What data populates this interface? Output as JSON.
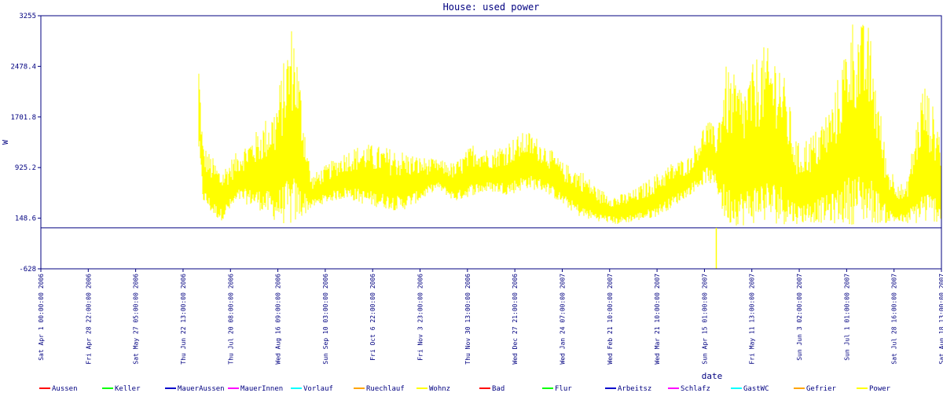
{
  "chart_data": {
    "type": "line",
    "title": "House: used power",
    "xlabel": "date",
    "ylabel": "W",
    "ylim": [
      -628,
      3255
    ],
    "yticks": [
      -628,
      148.6,
      925.2,
      1701.8,
      2478.4,
      3255
    ],
    "y_tick_labels": [
      "-628",
      "148.6",
      "925.2",
      "1701.8",
      "2478.4",
      "3255"
    ],
    "x_tick_labels": [
      "Sat Apr  1 00:00:00 2006",
      "Fri Apr 28 22:00:00 2006",
      "Sat May 27 05:00:00 2006",
      "Thu Jun 22 13:00:00 2006",
      "Thu Jul 20 08:00:00 2006",
      "Wed Aug 16 09:00:00 2006",
      "Sun Sep 10 03:00:00 2006",
      "Fri Oct  6 22:00:00 2006",
      "Fri Nov  3 23:00:00 2006",
      "Thu Nov 30 13:00:00 2006",
      "Wed Dec 27 21:00:00 2006",
      "Wed Jan 24 07:00:00 2007",
      "Wed Feb 21 10:00:00 2007",
      "Wed Mar 21 10:00:00 2007",
      "Sun Apr 15 01:00:00 2007",
      "Fri May 11 13:00:00 2007",
      "Sun Jun  3 02:00:00 2007",
      "Sun Jul  1 01:00:00 2007",
      "Sat Jul 28 16:00:00 2007",
      "Sat Aug 18 13:00:00 2007"
    ],
    "reference_line": {
      "y": 0,
      "color": "#000080"
    },
    "legend": [
      {
        "name": "Aussen",
        "color": "#ff0000"
      },
      {
        "name": "Keller",
        "color": "#00ff00"
      },
      {
        "name": "MauerAussen",
        "color": "#0000cc"
      },
      {
        "name": "MauerInnen",
        "color": "#ff00ff"
      },
      {
        "name": "Vorlauf",
        "color": "#00ffff"
      },
      {
        "name": "Ruechlauf",
        "color": "#ffa500"
      },
      {
        "name": "Wohnz",
        "color": "#ffff00"
      },
      {
        "name": "Bad",
        "color": "#ff0000"
      },
      {
        "name": "Flur",
        "color": "#00ff00"
      },
      {
        "name": "Arbeitsz",
        "color": "#0000cc"
      },
      {
        "name": "Schlafz",
        "color": "#ff00ff"
      },
      {
        "name": "GastWC",
        "color": "#00ffff"
      },
      {
        "name": "Gefrier",
        "color": "#ffa500"
      },
      {
        "name": "Power",
        "color": "#ffff00"
      }
    ],
    "legend_position": "bottom",
    "series": [
      {
        "name": "Power",
        "color": "#ffff00",
        "x": [
          0.175,
          0.18,
          0.19,
          0.2,
          0.22,
          0.24,
          0.26,
          0.28,
          0.3,
          0.32,
          0.34,
          0.36,
          0.38,
          0.4,
          0.42,
          0.44,
          0.46,
          0.48,
          0.5,
          0.52,
          0.54,
          0.56,
          0.58,
          0.6,
          0.62,
          0.64,
          0.66,
          0.68,
          0.7,
          0.72,
          0.74,
          0.75,
          0.76,
          0.78,
          0.8,
          0.82,
          0.84,
          0.86,
          0.88,
          0.9,
          0.92,
          0.94,
          0.96,
          0.98,
          1.0
        ],
        "y_upper": [
          2700,
          1300,
          1100,
          900,
          1200,
          1500,
          1900,
          3255,
          800,
          1000,
          1200,
          1300,
          1250,
          1200,
          1100,
          1050,
          1000,
          1300,
          1200,
          1350,
          1500,
          1300,
          1000,
          900,
          600,
          500,
          600,
          800,
          1000,
          1100,
          1700,
          1500,
          2500,
          2200,
          2800,
          2700,
          1300,
          1500,
          2000,
          3255,
          3100,
          1000,
          600,
          2300,
          1500
        ],
        "y_lower": [
          1200,
          400,
          200,
          100,
          400,
          300,
          100,
          0,
          300,
          400,
          450,
          350,
          300,
          250,
          400,
          600,
          400,
          500,
          550,
          500,
          600,
          550,
          350,
          150,
          100,
          50,
          100,
          150,
          300,
          500,
          700,
          600,
          50,
          30,
          80,
          50,
          60,
          80,
          60,
          50,
          60,
          70,
          60,
          50,
          100
        ]
      }
    ]
  }
}
